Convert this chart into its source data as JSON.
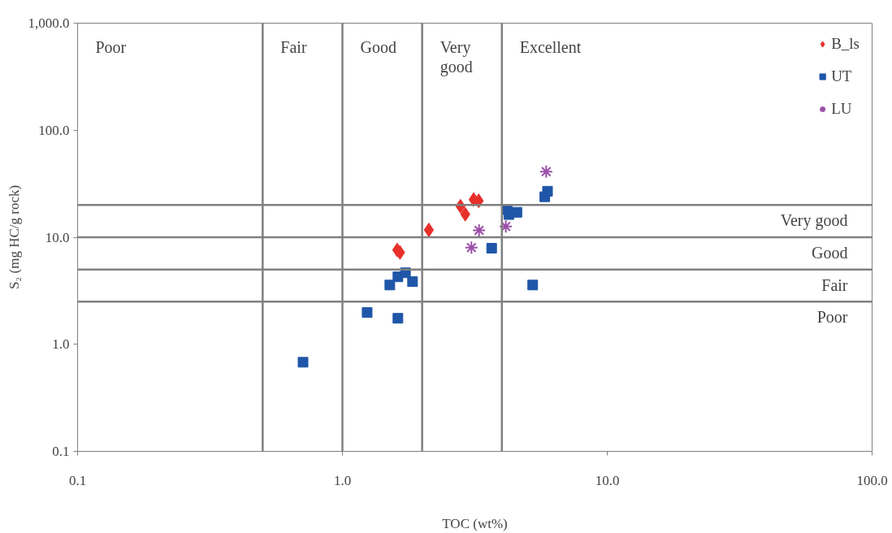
{
  "chart_data": {
    "type": "scatter",
    "xlabel": "TOC (wt%)",
    "ylabel": "S₂ (mg HC/g rock)",
    "log": "xy",
    "xlim": [
      0.1,
      100
    ],
    "ylim": [
      0.1,
      1000
    ],
    "xticks": [
      {
        "value": 0.1,
        "label": "0.1"
      },
      {
        "value": 1,
        "label": "1.0"
      },
      {
        "value": 10,
        "label": "10.0"
      },
      {
        "value": 100,
        "label": "100.0"
      }
    ],
    "yticks": [
      {
        "value": 0.1,
        "label": "0.1"
      },
      {
        "value": 1,
        "label": "1.0"
      },
      {
        "value": 10,
        "label": "10.0"
      },
      {
        "value": 100,
        "label": "100.0"
      },
      {
        "value": 1000,
        "label": "1,000.0"
      }
    ],
    "grid": false,
    "legend": "top right",
    "series": [
      {
        "name": "B_ls",
        "color": "#e8302a",
        "marker": "diamond",
        "x": [
          2.79,
          2.91,
          3.13,
          3.27,
          2.12,
          1.61,
          1.65
        ],
        "values": [
          19.5,
          16.4,
          22.5,
          21.9,
          11.7,
          7.6,
          7.2
        ]
      },
      {
        "name": "UT",
        "color": "#1f56a8",
        "marker": "square",
        "x": [
          1.24,
          1.62,
          1.51,
          1.62,
          1.73,
          1.84,
          3.66,
          5.23,
          4.19,
          4.25,
          4.56,
          5.81,
          5.95,
          0.71
        ],
        "values": [
          1.98,
          1.75,
          3.58,
          4.27,
          4.66,
          3.85,
          7.9,
          3.58,
          18.1,
          16.3,
          17.1,
          23.9,
          26.9,
          0.68
        ]
      },
      {
        "name": "LU",
        "color": "#9b4fa8",
        "marker": "cross",
        "x": [
          5.88,
          3.28,
          3.07,
          4.14
        ],
        "values": [
          41,
          11.6,
          8.0,
          12.6
        ]
      }
    ],
    "ref_lines": [
      {
        "axis": "x",
        "value": 0.5,
        "color": "#808080",
        "label": "Fair"
      },
      {
        "axis": "x",
        "value": 1,
        "color": "#808080",
        "label": "Good"
      },
      {
        "axis": "x",
        "value": 2,
        "color": "#808080",
        "label": "Very\ngood"
      },
      {
        "axis": "x",
        "value": 4,
        "color": "#808080",
        "label": "Excellent"
      },
      {
        "axis": "y",
        "value": 2.5,
        "color": "#808080",
        "label": "Poor"
      },
      {
        "axis": "y",
        "value": 5,
        "color": "#808080",
        "label": "Fair"
      },
      {
        "axis": "y",
        "value": 10,
        "color": "#808080",
        "label": "Good"
      },
      {
        "axis": "y",
        "value": 20,
        "color": "#808080",
        "label": "Very good"
      }
    ],
    "annotations": [
      "Poor"
    ]
  }
}
